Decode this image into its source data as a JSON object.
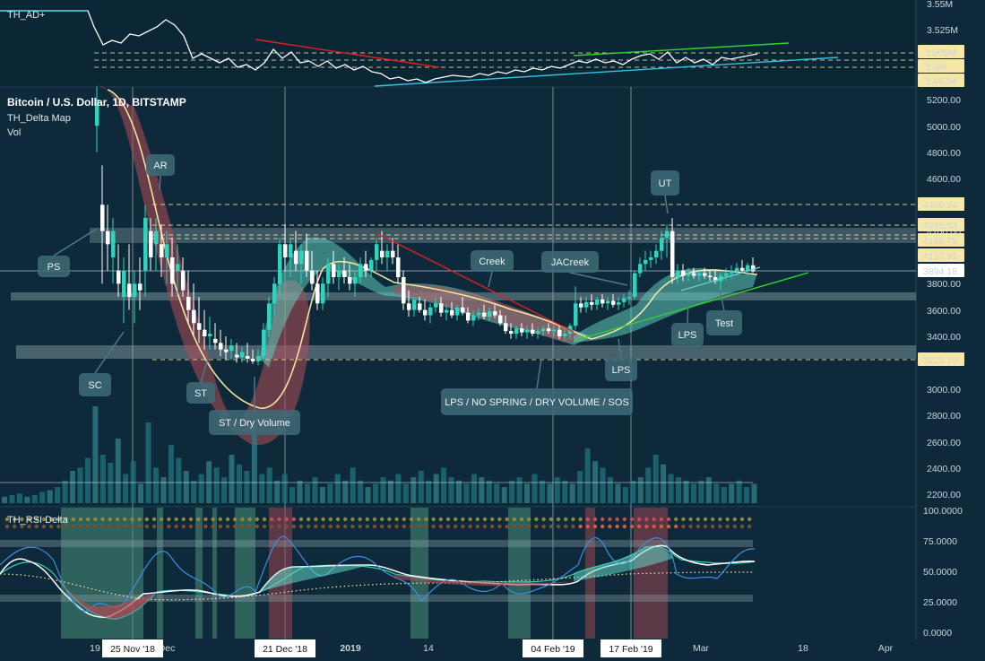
{
  "header": {
    "ad_label": "TH_AD+",
    "main_title": "Bitcoin / U.S. Dollar, 1D, BITSTAMP",
    "indicator1": "TH_Delta Map",
    "indicator2": "Vol",
    "rsi_label": "TH_RSI Delta"
  },
  "ad_axis": {
    "ticks": [
      "3.55M",
      "3.525M"
    ],
    "boxes": [
      "3.505M",
      "3.5M",
      "3.492M"
    ]
  },
  "price_axis": {
    "ticks": [
      "5200.00",
      "5000.00",
      "4800.00",
      "4600.00",
      "4400.00",
      "4200.00",
      "4000.00",
      "3800.00",
      "3600.00",
      "3400.00",
      "3000.00",
      "2800.00",
      "2600.00",
      "2400.00",
      "2200.00"
    ],
    "boxes": [
      {
        "label": "4400.24",
        "bg": "#f6e7a9"
      },
      {
        "label": "4245.63",
        "bg": "#f6e7a9"
      },
      {
        "label": "4168.75",
        "bg": "#f6e7a9"
      },
      {
        "label": "4157.91",
        "bg": "#f6e7a9"
      },
      {
        "label": "3894.18",
        "bg": "#ffffff"
      },
      {
        "label": "3223.19",
        "bg": "#f6e7a9"
      }
    ]
  },
  "rsi_axis": {
    "ticks": [
      "100.0000",
      "75.0000",
      "50.0000",
      "25.0000",
      "0.0000"
    ]
  },
  "x_axis": {
    "plain": [
      "19",
      "Dec",
      "2019",
      "14",
      "Mar",
      "18",
      "Apr"
    ],
    "boxed": [
      "25 Nov '18",
      "21 Dec '18",
      "04 Feb '19",
      "17 Feb '19"
    ]
  },
  "annotations": {
    "ps": "PS",
    "sc": "SC",
    "ar": "AR",
    "st": "ST",
    "st_dry": "ST / Dry Volume",
    "creek": "Creek",
    "jacreek": "JACreek",
    "ut": "UT",
    "lps_mid": "LPS",
    "lps_bottom": "LPS",
    "test": "Test",
    "lps_long": "LPS / NO SPRING / DRY VOLUME / SOS"
  },
  "colors": {
    "background": "#0e2a3a",
    "bull_candle": "#2bd6bd",
    "bear_candle": "#ffffff",
    "red_cloud": "#b34a55",
    "teal_cloud": "#64d6c4",
    "yellow_line": "#f3e3a0",
    "red_trend": "#e02020",
    "green_trend": "#34d12e",
    "cyan_trend": "#36c3e0",
    "box_gray": "#8fa6ae"
  },
  "chart_data": [
    {
      "type": "line",
      "series": [
        {
          "name": "TH_AD+",
          "values": [
            3.55,
            3.53,
            3.515,
            3.51,
            3.505,
            3.5,
            3.493,
            3.49,
            3.495,
            3.497,
            3.5,
            3.505,
            3.5,
            3.502,
            3.504
          ]
        }
      ],
      "ylim": [
        3.49,
        3.56
      ]
    },
    {
      "type": "candlestick",
      "title": "Bitcoin / U.S. Dollar, 1D, BITSTAMP",
      "ylim": [
        2200,
        5200
      ],
      "levels": [
        4400.24,
        4245.63,
        4168.75,
        4157.91,
        3894.18,
        3223.19
      ],
      "closes": [
        5600,
        4500,
        4200,
        3900,
        4300,
        4000,
        3700,
        3900,
        4300,
        4200,
        4100,
        3800,
        3500,
        3400,
        3300,
        3250,
        3200,
        3300,
        3600,
        3800,
        4100,
        4200,
        4000,
        3900,
        3850,
        3800,
        3900,
        4000,
        4050,
        3700,
        3650,
        3600,
        3650,
        3600,
        3550,
        3500,
        3450,
        3400,
        3450,
        3500,
        3650,
        3700,
        3750,
        4000,
        4050,
        4100,
        3850,
        3800,
        3900,
        3880,
        3894
      ]
    },
    {
      "type": "line",
      "title": "TH_RSI Delta",
      "ylim": [
        0,
        100
      ],
      "series": [
        {
          "name": "RSI",
          "values": [
            55,
            45,
            30,
            20,
            25,
            40,
            50,
            35,
            25,
            30,
            55,
            60,
            55,
            50,
            52,
            45,
            42,
            40,
            38,
            40,
            52,
            60,
            70,
            75,
            60,
            55,
            58,
            57,
            58
          ]
        }
      ]
    }
  ]
}
